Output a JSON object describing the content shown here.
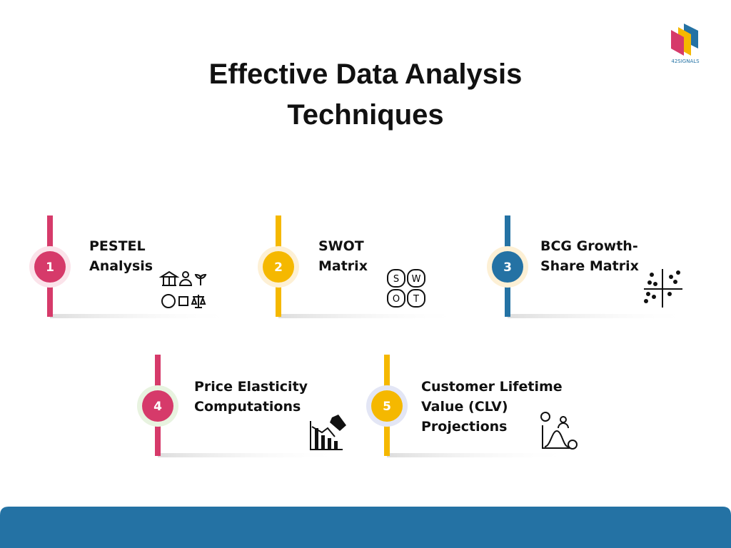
{
  "header": {
    "title": [
      "Effective Data Analysis",
      "Techniques"
    ],
    "logo": "42SIGNALS"
  },
  "items": [
    {
      "number": 1,
      "label": [
        "PESTEL",
        "Analysis"
      ]
    },
    {
      "number": 2,
      "label": [
        "SWOT",
        "Matrix"
      ]
    },
    {
      "number": 3,
      "label": [
        "BCG Growth-",
        "Share Matrix"
      ]
    },
    {
      "number": 4,
      "label": [
        "Price Elasticity",
        "Computations"
      ]
    },
    {
      "number": 5,
      "label": [
        "Customer Lifetime",
        "Value (CLV)",
        "Projections"
      ]
    }
  ],
  "swot": [
    "S",
    "W",
    "O",
    "T"
  ]
}
